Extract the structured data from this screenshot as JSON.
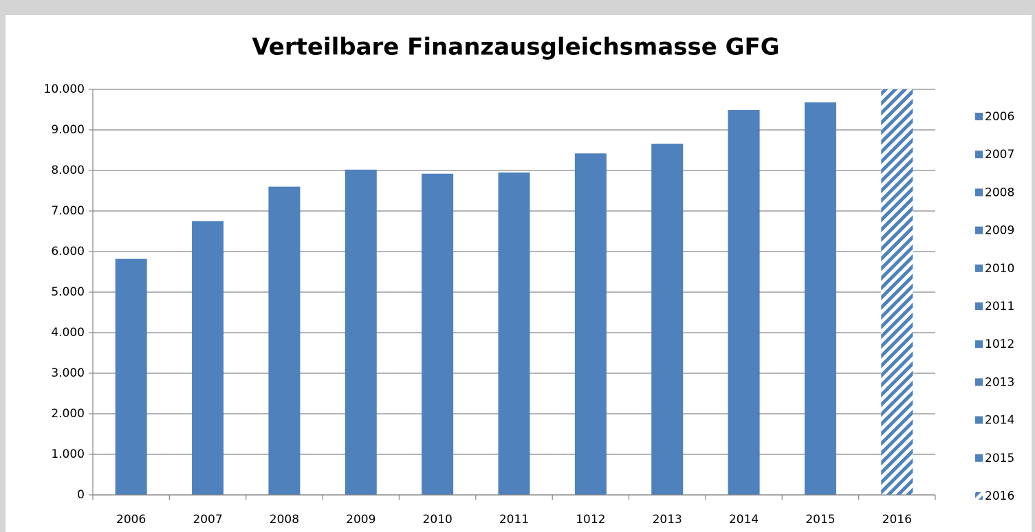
{
  "chart_data": {
    "type": "bar",
    "title": "Verteilbare Finanzausgleichsmasse GFG",
    "categories": [
      "2006",
      "2007",
      "2008",
      "2009",
      "2010",
      "2011",
      "1012",
      "2013",
      "2014",
      "2015",
      "2016"
    ],
    "values": [
      5820,
      6750,
      7600,
      8020,
      7920,
      7950,
      8420,
      8660,
      9490,
      9680,
      10000
    ],
    "color": "#4f81bd",
    "hatch": [
      false,
      false,
      false,
      false,
      false,
      false,
      false,
      false,
      false,
      false,
      true
    ],
    "ylim": [
      0,
      10000
    ],
    "yticks": [
      0,
      {
        "value": 1000,
        "label": "1.000"
      },
      {
        "value": 2000,
        "label": "2.000"
      },
      {
        "value": 3000,
        "label": "3.000"
      },
      {
        "value": 4000,
        "label": "4.000"
      },
      {
        "value": 5000,
        "label": "5.000"
      },
      {
        "value": 6000,
        "label": "6.000"
      },
      {
        "value": 7000,
        "label": "7.000"
      },
      {
        "value": 8000,
        "label": "8.000"
      },
      {
        "value": 9000,
        "label": "9.000"
      },
      {
        "value": 10000,
        "label": "10.000"
      }
    ],
    "grid": true,
    "legend": "right"
  }
}
